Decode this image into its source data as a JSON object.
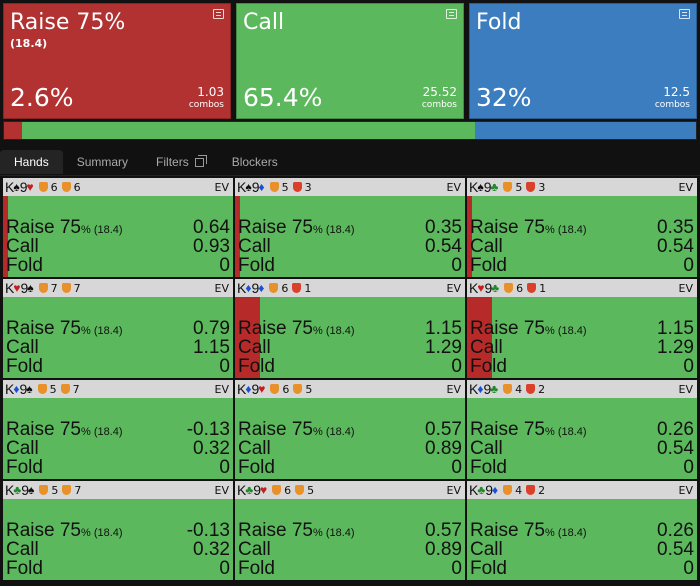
{
  "actions": [
    {
      "label": "Raise 75%",
      "sub": "(18.4)",
      "freq": "2.6%",
      "combos": "1.03",
      "combos_unit": "combos",
      "color": "#b23232"
    },
    {
      "label": "Call",
      "sub": "",
      "freq": "65.4%",
      "combos": "25.52",
      "combos_unit": "combos",
      "color": "#5cb85c"
    },
    {
      "label": "Fold",
      "sub": "",
      "freq": "32%",
      "combos": "12.5",
      "combos_unit": "combos",
      "color": "#3b7dbf"
    }
  ],
  "frequency_bar": [
    {
      "action": "Raise",
      "fraction": 0.026,
      "color": "#b23232"
    },
    {
      "action": "Call",
      "fraction": 0.654,
      "color": "#5cb85c"
    },
    {
      "action": "Fold",
      "fraction": 0.32,
      "color": "#3b7dbf"
    }
  ],
  "tabs": [
    "Hands",
    "Summary",
    "Filters",
    "Blockers"
  ],
  "row_labels": {
    "raise": "Raise 75",
    "raise_pct": "%",
    "raise_size": "(18.4)",
    "call": "Call",
    "fold": "Fold",
    "ev": "EV"
  },
  "hands": [
    {
      "c1": "K",
      "s1": "♠",
      "s1c": "#111",
      "c2": "9",
      "s2": "♥",
      "s2c": "#c41e1e",
      "b1": "6",
      "b1c": "#e8912a",
      "b2": "6",
      "b2c": "#e8912a",
      "raise": "0.64",
      "call": "0.93",
      "fold": "0",
      "raise_frac": 0.02
    },
    {
      "c1": "K",
      "s1": "♠",
      "s1c": "#111",
      "c2": "9",
      "s2": "♦",
      "s2c": "#1a4fd6",
      "b1": "5",
      "b1c": "#e8912a",
      "b2": "3",
      "b2c": "#d9412b",
      "raise": "0.35",
      "call": "0.54",
      "fold": "0",
      "raise_frac": 0.02
    },
    {
      "c1": "K",
      "s1": "♠",
      "s1c": "#111",
      "c2": "9",
      "s2": "♣",
      "s2c": "#1f8a2a",
      "b1": "5",
      "b1c": "#e8912a",
      "b2": "3",
      "b2c": "#d9412b",
      "raise": "0.35",
      "call": "0.54",
      "fold": "0",
      "raise_frac": 0.02
    },
    {
      "c1": "K",
      "s1": "♥",
      "s1c": "#c41e1e",
      "c2": "9",
      "s2": "♠",
      "s2c": "#111",
      "b1": "7",
      "b1c": "#e8912a",
      "b2": "7",
      "b2c": "#e8912a",
      "raise": "0.79",
      "call": "1.15",
      "fold": "0",
      "raise_frac": 0.0
    },
    {
      "c1": "K",
      "s1": "♦",
      "s1c": "#1a4fd6",
      "c2": "9",
      "s2": "♦",
      "s2c": "#1a4fd6",
      "b1": "6",
      "b1c": "#e8912a",
      "b2": "1",
      "b2c": "#d9412b",
      "raise": "1.15",
      "call": "1.29",
      "fold": "0",
      "raise_frac": 0.11
    },
    {
      "c1": "K",
      "s1": "♥",
      "s1c": "#c41e1e",
      "c2": "9",
      "s2": "♣",
      "s2c": "#1f8a2a",
      "b1": "6",
      "b1c": "#e8912a",
      "b2": "1",
      "b2c": "#d9412b",
      "raise": "1.15",
      "call": "1.29",
      "fold": "0",
      "raise_frac": 0.11
    },
    {
      "c1": "K",
      "s1": "♦",
      "s1c": "#1a4fd6",
      "c2": "9",
      "s2": "♠",
      "s2c": "#111",
      "b1": "5",
      "b1c": "#e8912a",
      "b2": "7",
      "b2c": "#e8912a",
      "raise": "-0.13",
      "call": "0.32",
      "fold": "0",
      "raise_frac": 0.0
    },
    {
      "c1": "K",
      "s1": "♦",
      "s1c": "#1a4fd6",
      "c2": "9",
      "s2": "♥",
      "s2c": "#c41e1e",
      "b1": "6",
      "b1c": "#e8912a",
      "b2": "5",
      "b2c": "#e8912a",
      "raise": "0.57",
      "call": "0.89",
      "fold": "0",
      "raise_frac": 0.0
    },
    {
      "c1": "K",
      "s1": "♦",
      "s1c": "#1a4fd6",
      "c2": "9",
      "s2": "♣",
      "s2c": "#1f8a2a",
      "b1": "4",
      "b1c": "#e8912a",
      "b2": "2",
      "b2c": "#d9412b",
      "raise": "0.26",
      "call": "0.54",
      "fold": "0",
      "raise_frac": 0.0
    },
    {
      "c1": "K",
      "s1": "♣",
      "s1c": "#1f8a2a",
      "c2": "9",
      "s2": "♠",
      "s2c": "#111",
      "b1": "5",
      "b1c": "#e8912a",
      "b2": "7",
      "b2c": "#e8912a",
      "raise": "-0.13",
      "call": "0.32",
      "fold": "0",
      "raise_frac": 0.0
    },
    {
      "c1": "K",
      "s1": "♣",
      "s1c": "#1f8a2a",
      "c2": "9",
      "s2": "♥",
      "s2c": "#c41e1e",
      "b1": "6",
      "b1c": "#e8912a",
      "b2": "5",
      "b2c": "#e8912a",
      "raise": "0.57",
      "call": "0.89",
      "fold": "0",
      "raise_frac": 0.0
    },
    {
      "c1": "K",
      "s1": "♣",
      "s1c": "#1f8a2a",
      "c2": "9",
      "s2": "♦",
      "s2c": "#1a4fd6",
      "b1": "4",
      "b1c": "#e8912a",
      "b2": "2",
      "b2c": "#d9412b",
      "raise": "0.26",
      "call": "0.54",
      "fold": "0",
      "raise_frac": 0.0
    }
  ]
}
